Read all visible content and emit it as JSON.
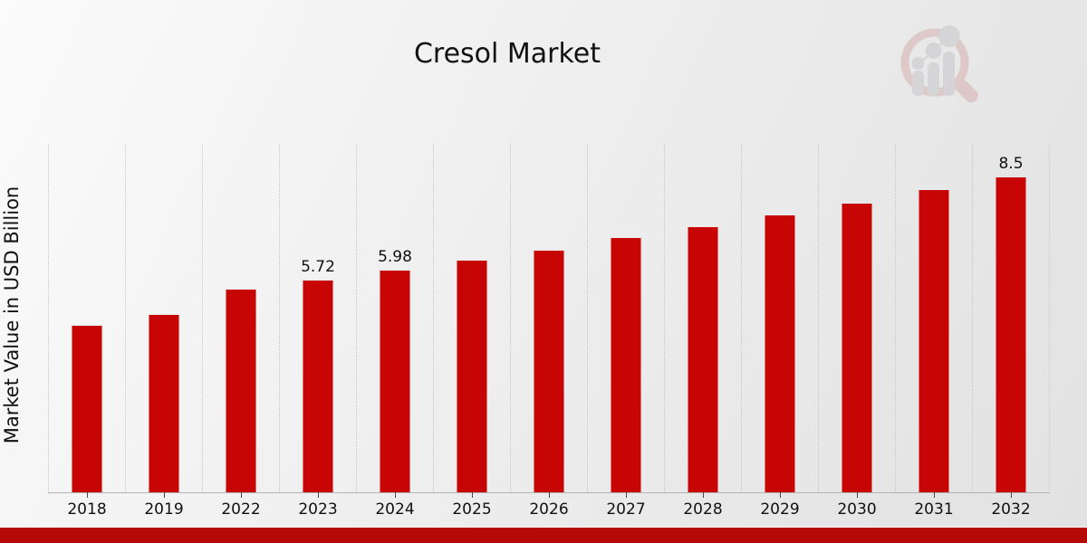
{
  "header": {
    "title": "Cresol Market"
  },
  "logo": {
    "name": "market-research-future-logo"
  },
  "colors": {
    "bar": "#c80505",
    "bottom_strip": "#b40909",
    "gridline": "#c6c6c6",
    "text": "#111111"
  },
  "chart_data": {
    "type": "bar",
    "title": "Cresol Market",
    "xlabel": "",
    "ylabel": "Market Value in USD Billion",
    "categories": [
      "2018",
      "2019",
      "2022",
      "2023",
      "2024",
      "2025",
      "2026",
      "2027",
      "2028",
      "2029",
      "2030",
      "2031",
      "2032"
    ],
    "values": [
      4.5,
      4.79,
      5.47,
      5.72,
      5.98,
      6.25,
      6.52,
      6.86,
      7.15,
      7.47,
      7.8,
      8.15,
      8.5
    ],
    "data_labels": [
      "",
      "",
      "",
      "5.72",
      "5.98",
      "",
      "",
      "",
      "",
      "",
      "",
      "",
      "8.5"
    ],
    "ylim": [
      0,
      9.4
    ],
    "y_axis_ticks_visible": false,
    "grid": "vertical-dotted",
    "legend": "none",
    "bar_color": "#c80505"
  }
}
